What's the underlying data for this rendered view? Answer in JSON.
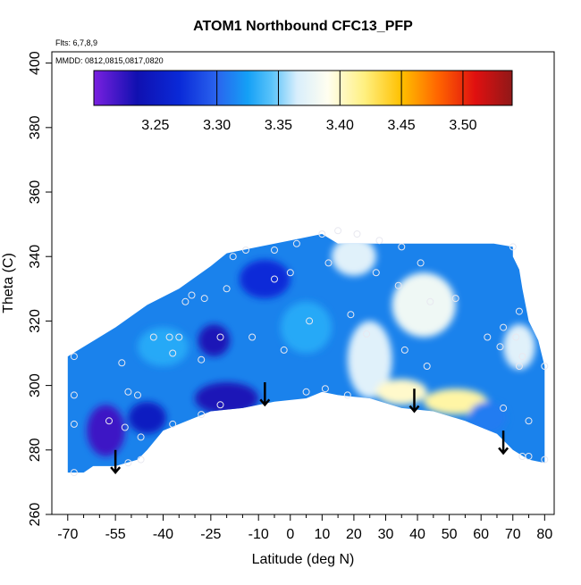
{
  "chart_data": {
    "type": "heatmap",
    "title": "ATOM1 Northbound CFC13_PFP",
    "subtitle_flights": "Flts: 6,7,8,9",
    "subtitle_dates": "MMDD: 0812,0815,0817,0820",
    "xlabel": "Latitude (deg N)",
    "ylabel": "Theta (C)",
    "xlim": [
      -70,
      80
    ],
    "ylim": [
      260,
      400
    ],
    "x_ticks": [
      -70,
      -55,
      -40,
      -25,
      -10,
      0,
      10,
      20,
      30,
      40,
      50,
      60,
      70,
      80
    ],
    "x_tick_labels": [
      "-70",
      "-55",
      "-40",
      "-25",
      "-10",
      "0",
      "10",
      "20",
      "30",
      "40",
      "50",
      "60",
      "70",
      "80"
    ],
    "x_minor_ticks": [
      -65,
      -60,
      -50,
      -45,
      -35,
      -30,
      -20,
      -15,
      -5,
      5,
      15,
      25,
      35,
      45,
      55,
      65,
      75
    ],
    "y_ticks": [
      260,
      280,
      300,
      320,
      340,
      360,
      380,
      400
    ],
    "y_tick_labels": [
      "260",
      "280",
      "300",
      "320",
      "340",
      "360",
      "380",
      "400"
    ],
    "colorbar": {
      "range": [
        3.2,
        3.54
      ],
      "breaks": [
        3.3,
        3.35,
        3.4,
        3.45,
        3.5
      ],
      "tick_values": [
        3.25,
        3.3,
        3.35,
        3.4,
        3.45,
        3.5
      ],
      "tick_labels": [
        "3.25",
        "3.30",
        "3.35",
        "3.40",
        "3.45",
        "3.50"
      ],
      "color_stops": [
        {
          "value": 3.2,
          "color": "#7a20e0"
        },
        {
          "value": 3.235,
          "color": "#1010b0"
        },
        {
          "value": 3.27,
          "color": "#0a2ad8"
        },
        {
          "value": 3.3,
          "color": "#2a64ee"
        },
        {
          "value": 3.325,
          "color": "#14a0f6"
        },
        {
          "value": 3.345,
          "color": "#5cc4fa"
        },
        {
          "value": 3.365,
          "color": "#d8eefc"
        },
        {
          "value": 3.39,
          "color": "#fffef0"
        },
        {
          "value": 3.42,
          "color": "#fff080"
        },
        {
          "value": 3.45,
          "color": "#ffc000"
        },
        {
          "value": 3.48,
          "color": "#ff6400"
        },
        {
          "value": 3.51,
          "color": "#e01010"
        },
        {
          "value": 3.54,
          "color": "#901818"
        }
      ]
    },
    "field_boundary": [
      [
        -70,
        273
      ],
      [
        -65,
        273
      ],
      [
        -62,
        275
      ],
      [
        -55,
        275
      ],
      [
        -48,
        277
      ],
      [
        -45,
        280
      ],
      [
        -40,
        286
      ],
      [
        -35,
        288
      ],
      [
        -25,
        292
      ],
      [
        -15,
        293
      ],
      [
        -5,
        295
      ],
      [
        5,
        296
      ],
      [
        10,
        298
      ],
      [
        15,
        297
      ],
      [
        25,
        296
      ],
      [
        35,
        293
      ],
      [
        45,
        292
      ],
      [
        55,
        289
      ],
      [
        65,
        285
      ],
      [
        70,
        280
      ],
      [
        75,
        277
      ],
      [
        80,
        276
      ],
      [
        80,
        306
      ],
      [
        78,
        314
      ],
      [
        75,
        320
      ],
      [
        73,
        330
      ],
      [
        72,
        336
      ],
      [
        70,
        340
      ],
      [
        70,
        343
      ],
      [
        64,
        344
      ],
      [
        15,
        344
      ],
      [
        10,
        347
      ],
      [
        0,
        345
      ],
      [
        -10,
        343
      ],
      [
        -20,
        341
      ],
      [
        -25,
        337
      ],
      [
        -35,
        330
      ],
      [
        -45,
        325
      ],
      [
        -55,
        318
      ],
      [
        -65,
        312
      ],
      [
        -70,
        309
      ]
    ],
    "field_anomalies": [
      {
        "x": -58,
        "y": 286,
        "value": 3.22,
        "rx": 6,
        "ry": 8
      },
      {
        "x": -24,
        "y": 314,
        "value": 3.23,
        "rx": 5,
        "ry": 5
      },
      {
        "x": -20,
        "y": 296,
        "value": 3.23,
        "rx": 10,
        "ry": 5
      },
      {
        "x": -45,
        "y": 290,
        "value": 3.25,
        "rx": 6,
        "ry": 5
      },
      {
        "x": -8,
        "y": 333,
        "value": 3.27,
        "rx": 8,
        "ry": 6
      },
      {
        "x": 20,
        "y": 340,
        "value": 3.37,
        "rx": 7,
        "ry": 6
      },
      {
        "x": 25,
        "y": 308,
        "value": 3.37,
        "rx": 7,
        "ry": 12
      },
      {
        "x": 42,
        "y": 325,
        "value": 3.38,
        "rx": 10,
        "ry": 10
      },
      {
        "x": 35,
        "y": 298,
        "value": 3.4,
        "rx": 8,
        "ry": 4
      },
      {
        "x": 52,
        "y": 295,
        "value": 3.41,
        "rx": 10,
        "ry": 4
      },
      {
        "x": 72,
        "y": 312,
        "value": 3.37,
        "rx": 5,
        "ry": 7
      },
      {
        "x": 62,
        "y": 290,
        "value": 3.31,
        "rx": 6,
        "ry": 5
      },
      {
        "x": 5,
        "y": 318,
        "value": 3.33,
        "rx": 8,
        "ry": 8
      },
      {
        "x": -40,
        "y": 312,
        "value": 3.33,
        "rx": 8,
        "ry": 6
      }
    ],
    "sample_points": [
      {
        "x": -68,
        "y": 309
      },
      {
        "x": -68,
        "y": 297
      },
      {
        "x": -68,
        "y": 288
      },
      {
        "x": -68,
        "y": 273
      },
      {
        "x": -57,
        "y": 289
      },
      {
        "x": -53,
        "y": 307
      },
      {
        "x": -51,
        "y": 298
      },
      {
        "x": -48,
        "y": 297
      },
      {
        "x": -52,
        "y": 287
      },
      {
        "x": -47,
        "y": 284
      },
      {
        "x": -51,
        "y": 276
      },
      {
        "x": -47,
        "y": 277
      },
      {
        "x": -43,
        "y": 315
      },
      {
        "x": -38,
        "y": 315
      },
      {
        "x": -37,
        "y": 310
      },
      {
        "x": -35,
        "y": 315
      },
      {
        "x": -37,
        "y": 288
      },
      {
        "x": -33,
        "y": 326
      },
      {
        "x": -31,
        "y": 328
      },
      {
        "x": -27,
        "y": 327
      },
      {
        "x": -28,
        "y": 308
      },
      {
        "x": -28,
        "y": 291
      },
      {
        "x": -22,
        "y": 294
      },
      {
        "x": -22,
        "y": 315
      },
      {
        "x": -20,
        "y": 330
      },
      {
        "x": -18,
        "y": 340
      },
      {
        "x": -14,
        "y": 342
      },
      {
        "x": -12,
        "y": 315
      },
      {
        "x": -5,
        "y": 333
      },
      {
        "x": -5,
        "y": 342
      },
      {
        "x": 0,
        "y": 335
      },
      {
        "x": 2,
        "y": 344
      },
      {
        "x": -2,
        "y": 311
      },
      {
        "x": 5,
        "y": 298
      },
      {
        "x": 6,
        "y": 320
      },
      {
        "x": 10,
        "y": 347
      },
      {
        "x": 11,
        "y": 299
      },
      {
        "x": 12,
        "y": 338
      },
      {
        "x": 15,
        "y": 348
      },
      {
        "x": 18,
        "y": 297
      },
      {
        "x": 19,
        "y": 322
      },
      {
        "x": 21,
        "y": 347
      },
      {
        "x": 24,
        "y": 316
      },
      {
        "x": 27,
        "y": 335
      },
      {
        "x": 28,
        "y": 345
      },
      {
        "x": 34,
        "y": 331
      },
      {
        "x": 35,
        "y": 343
      },
      {
        "x": 36,
        "y": 311
      },
      {
        "x": 41,
        "y": 338
      },
      {
        "x": 43,
        "y": 306
      },
      {
        "x": 44,
        "y": 326
      },
      {
        "x": 52,
        "y": 327
      },
      {
        "x": 62,
        "y": 315
      },
      {
        "x": 66,
        "y": 312
      },
      {
        "x": 67,
        "y": 318
      },
      {
        "x": 70,
        "y": 343
      },
      {
        "x": 71,
        "y": 315
      },
      {
        "x": 72,
        "y": 323
      },
      {
        "x": 73,
        "y": 309
      },
      {
        "x": 72,
        "y": 306
      },
      {
        "x": 67,
        "y": 293
      },
      {
        "x": 73,
        "y": 278
      },
      {
        "x": 75,
        "y": 278
      },
      {
        "x": 75,
        "y": 289
      },
      {
        "x": 80,
        "y": 306
      },
      {
        "x": 80,
        "y": 277
      }
    ],
    "arrows": [
      {
        "x": -55,
        "y_start": 280,
        "y_end": 273
      },
      {
        "x": -8,
        "y_start": 301,
        "y_end": 294
      },
      {
        "x": 39,
        "y_start": 299,
        "y_end": 292
      },
      {
        "x": 67,
        "y_start": 286,
        "y_end": 279
      }
    ]
  }
}
